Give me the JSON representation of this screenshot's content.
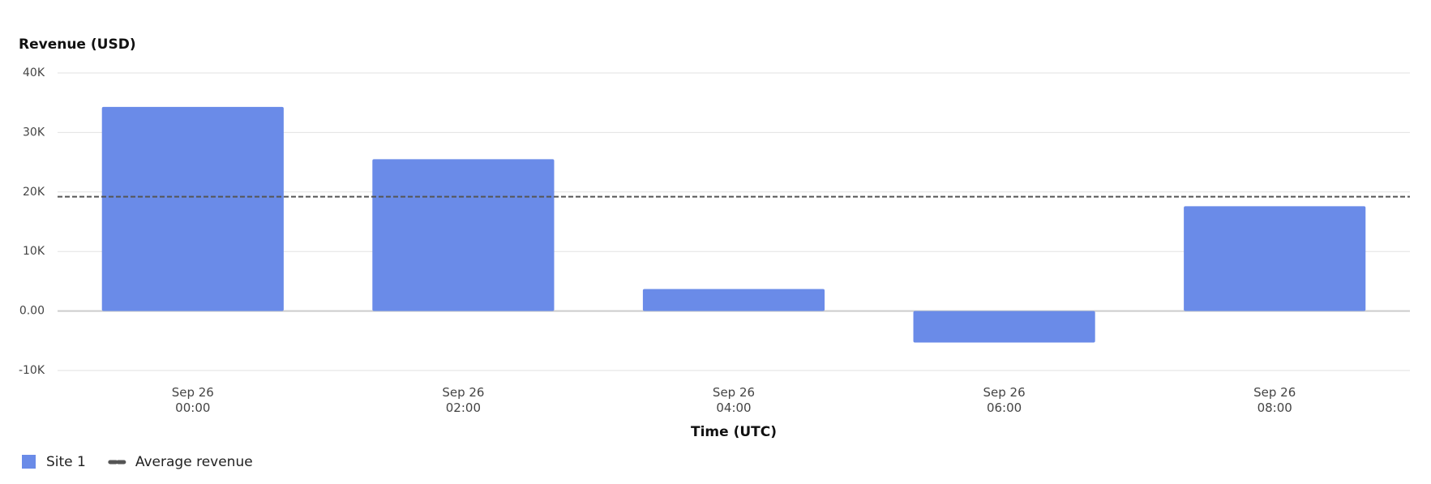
{
  "chart_data": {
    "type": "bar",
    "title": "Revenue (USD)",
    "x_label": "Time (UTC)",
    "categories": [
      "Sep 26\n00:00",
      "Sep 26\n02:00",
      "Sep 26\n04:00",
      "Sep 26\n06:00",
      "Sep 26\n08:00"
    ],
    "series": [
      {
        "name": "Site 1",
        "color": "#6a8be8",
        "values": [
          34300,
          25500,
          3700,
          -5300,
          17600
        ]
      }
    ],
    "reference_lines": [
      {
        "name": "Average revenue",
        "value": 19200,
        "color": "#555555"
      }
    ],
    "ylim": [
      -10000,
      40000
    ],
    "yticks": [
      {
        "value": -10000,
        "label": "-10K"
      },
      {
        "value": 0,
        "label": "0.00"
      },
      {
        "value": 10000,
        "label": "10K"
      },
      {
        "value": 20000,
        "label": "20K"
      },
      {
        "value": 30000,
        "label": "30K"
      },
      {
        "value": 40000,
        "label": "40K"
      }
    ],
    "grid": true
  }
}
